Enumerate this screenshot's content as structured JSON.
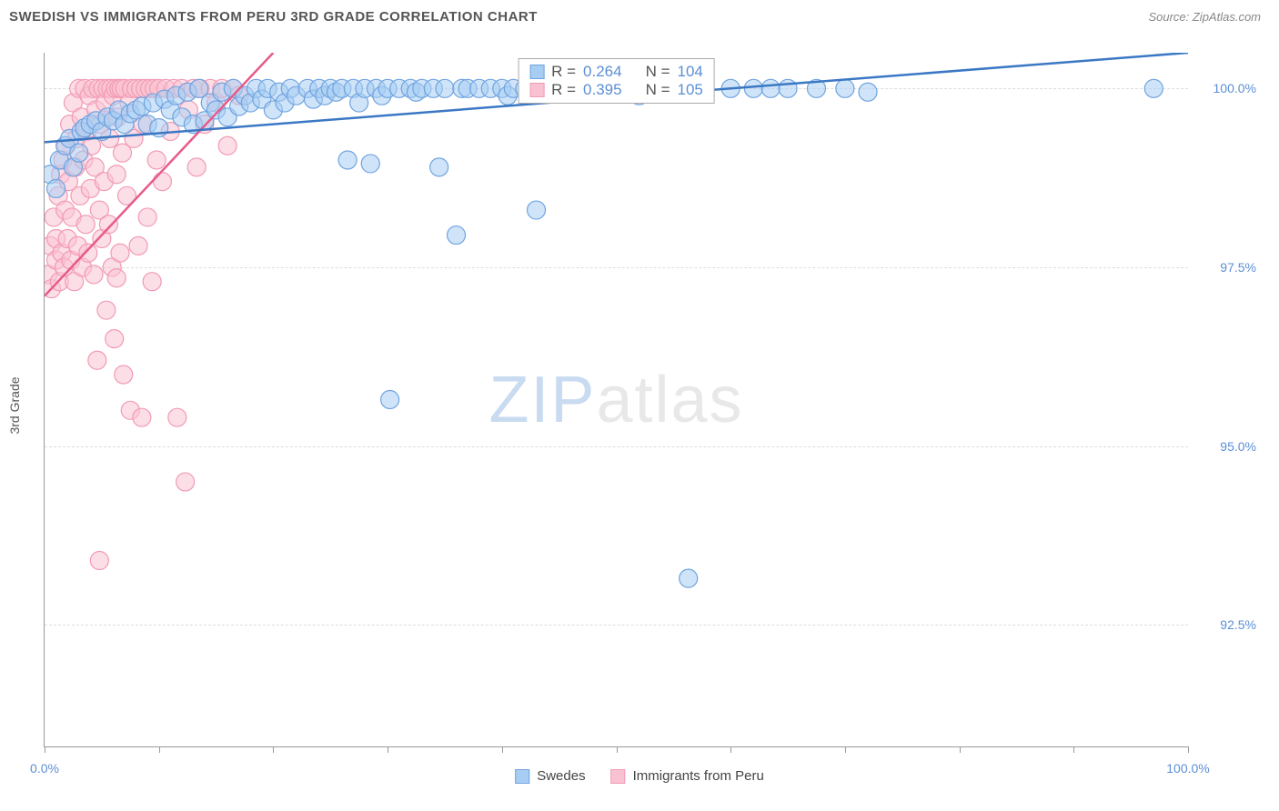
{
  "title": "SWEDISH VS IMMIGRANTS FROM PERU 3RD GRADE CORRELATION CHART",
  "source": "Source: ZipAtlas.com",
  "y_axis_label": "3rd Grade",
  "watermark_zip": "ZIP",
  "watermark_atlas": "atlas",
  "colors": {
    "blue_stroke": "#6fa3e0",
    "blue_fill": "#a8cdf2",
    "blue_fill_alpha": 0.55,
    "pink_stroke": "#f29ab5",
    "pink_fill": "#f9c2d2",
    "pink_fill_alpha": 0.55,
    "blue_line": "#3b78c4",
    "pink_line": "#e85a8a",
    "tick_text": "#5b8fd6",
    "stat_text": "#5b8fd6",
    "grid": "#dddddd"
  },
  "chart": {
    "xlim": [
      0,
      100
    ],
    "ylim": [
      90.8,
      100.5
    ],
    "ytick_values": [
      92.5,
      95.0,
      97.5,
      100.0
    ],
    "ytick_labels": [
      "92.5%",
      "95.0%",
      "97.5%",
      "100.0%"
    ],
    "xtick_values": [
      0,
      10,
      20,
      30,
      40,
      50,
      60,
      70,
      80,
      90,
      100
    ],
    "x_first_label": "0.0%",
    "x_last_label": "100.0%",
    "marker_radius": 10
  },
  "stats": {
    "blue": {
      "r_label": "R = ",
      "r": "0.264",
      "n_label": "N = ",
      "n": "104"
    },
    "pink": {
      "r_label": "R = ",
      "r": "0.395",
      "n_label": "N = ",
      "n": "105"
    }
  },
  "bottom_legend": {
    "blue": "Swedes",
    "pink": "Immigrants from Peru"
  },
  "series_blue": {
    "trend": {
      "x1": 0,
      "y1": 99.25,
      "x2": 100,
      "y2": 100.5
    },
    "points": [
      [
        0.5,
        98.8
      ],
      [
        1.0,
        98.6
      ],
      [
        1.3,
        99.0
      ],
      [
        1.8,
        99.2
      ],
      [
        2.2,
        99.3
      ],
      [
        2.5,
        98.9
      ],
      [
        3.0,
        99.1
      ],
      [
        3.2,
        99.4
      ],
      [
        3.5,
        99.45
      ],
      [
        4.0,
        99.5
      ],
      [
        4.5,
        99.55
      ],
      [
        5.0,
        99.4
      ],
      [
        5.5,
        99.6
      ],
      [
        6.0,
        99.55
      ],
      [
        6.5,
        99.7
      ],
      [
        7.0,
        99.5
      ],
      [
        7.5,
        99.65
      ],
      [
        8.0,
        99.7
      ],
      [
        8.5,
        99.75
      ],
      [
        9.0,
        99.5
      ],
      [
        9.5,
        99.8
      ],
      [
        10.0,
        99.45
      ],
      [
        10.5,
        99.85
      ],
      [
        11.0,
        99.7
      ],
      [
        11.5,
        99.9
      ],
      [
        12.0,
        99.6
      ],
      [
        12.5,
        99.95
      ],
      [
        13.0,
        99.5
      ],
      [
        13.5,
        100.0
      ],
      [
        14.0,
        99.55
      ],
      [
        14.5,
        99.8
      ],
      [
        15.0,
        99.7
      ],
      [
        15.5,
        99.95
      ],
      [
        16.0,
        99.6
      ],
      [
        16.5,
        100.0
      ],
      [
        17.0,
        99.75
      ],
      [
        17.5,
        99.9
      ],
      [
        18.0,
        99.8
      ],
      [
        18.5,
        100.0
      ],
      [
        19.0,
        99.85
      ],
      [
        19.5,
        100.0
      ],
      [
        20.0,
        99.7
      ],
      [
        20.5,
        99.95
      ],
      [
        21.0,
        99.8
      ],
      [
        21.5,
        100.0
      ],
      [
        22.0,
        99.9
      ],
      [
        23.0,
        100.0
      ],
      [
        23.5,
        99.85
      ],
      [
        24.0,
        100.0
      ],
      [
        24.5,
        99.9
      ],
      [
        25.0,
        100.0
      ],
      [
        25.5,
        99.95
      ],
      [
        26.0,
        100.0
      ],
      [
        26.5,
        99.0
      ],
      [
        27.0,
        100.0
      ],
      [
        27.5,
        99.8
      ],
      [
        28.0,
        100.0
      ],
      [
        28.5,
        98.95
      ],
      [
        29.0,
        100.0
      ],
      [
        29.5,
        99.9
      ],
      [
        30.0,
        100.0
      ],
      [
        30.2,
        95.65
      ],
      [
        31.0,
        100.0
      ],
      [
        32.0,
        100.0
      ],
      [
        32.5,
        99.95
      ],
      [
        33.0,
        100.0
      ],
      [
        34.0,
        100.0
      ],
      [
        34.5,
        98.9
      ],
      [
        35.0,
        100.0
      ],
      [
        36.0,
        97.95
      ],
      [
        36.5,
        100.0
      ],
      [
        37.0,
        100.0
      ],
      [
        38.0,
        100.0
      ],
      [
        39.0,
        100.0
      ],
      [
        40.0,
        100.0
      ],
      [
        40.5,
        99.9
      ],
      [
        41.0,
        100.0
      ],
      [
        42.0,
        100.0
      ],
      [
        43.0,
        98.3
      ],
      [
        43.5,
        100.0
      ],
      [
        45.0,
        100.0
      ],
      [
        46.0,
        100.0
      ],
      [
        47.0,
        100.0
      ],
      [
        48.0,
        99.95
      ],
      [
        49.0,
        100.0
      ],
      [
        50.0,
        100.0
      ],
      [
        51.0,
        100.0
      ],
      [
        52.0,
        99.9
      ],
      [
        53.0,
        100.0
      ],
      [
        54.0,
        100.0
      ],
      [
        55.0,
        100.0
      ],
      [
        56.3,
        93.15
      ],
      [
        57.5,
        100.0
      ],
      [
        60.0,
        100.0
      ],
      [
        62.0,
        100.0
      ],
      [
        63.5,
        100.0
      ],
      [
        65.0,
        100.0
      ],
      [
        67.5,
        100.0
      ],
      [
        70.0,
        100.0
      ],
      [
        72.0,
        99.95
      ],
      [
        97.0,
        100.0
      ]
    ]
  },
  "series_pink": {
    "trend": {
      "x1": 0,
      "y1": 97.1,
      "x2": 20,
      "y2": 100.5
    },
    "points": [
      [
        0.3,
        97.4
      ],
      [
        0.5,
        97.8
      ],
      [
        0.6,
        97.2
      ],
      [
        0.8,
        98.2
      ],
      [
        1.0,
        97.6
      ],
      [
        1.0,
        97.9
      ],
      [
        1.2,
        98.5
      ],
      [
        1.3,
        97.3
      ],
      [
        1.4,
        98.8
      ],
      [
        1.5,
        97.7
      ],
      [
        1.6,
        99.0
      ],
      [
        1.7,
        97.5
      ],
      [
        1.8,
        98.3
      ],
      [
        1.9,
        99.2
      ],
      [
        2.0,
        97.9
      ],
      [
        2.1,
        98.7
      ],
      [
        2.2,
        99.5
      ],
      [
        2.3,
        97.6
      ],
      [
        2.4,
        98.2
      ],
      [
        2.5,
        99.8
      ],
      [
        2.6,
        97.3
      ],
      [
        2.7,
        98.9
      ],
      [
        2.8,
        99.3
      ],
      [
        2.9,
        97.8
      ],
      [
        3.0,
        100.0
      ],
      [
        3.1,
        98.5
      ],
      [
        3.2,
        99.6
      ],
      [
        3.3,
        97.5
      ],
      [
        3.4,
        99.0
      ],
      [
        3.5,
        100.0
      ],
      [
        3.6,
        98.1
      ],
      [
        3.7,
        99.4
      ],
      [
        3.8,
        97.7
      ],
      [
        3.9,
        99.9
      ],
      [
        4.0,
        98.6
      ],
      [
        4.1,
        99.2
      ],
      [
        4.2,
        100.0
      ],
      [
        4.3,
        97.4
      ],
      [
        4.4,
        98.9
      ],
      [
        4.5,
        99.7
      ],
      [
        4.6,
        96.2
      ],
      [
        4.7,
        100.0
      ],
      [
        4.8,
        98.3
      ],
      [
        4.9,
        99.5
      ],
      [
        5.0,
        97.9
      ],
      [
        5.1,
        100.0
      ],
      [
        5.2,
        98.7
      ],
      [
        5.3,
        99.8
      ],
      [
        5.4,
        96.9
      ],
      [
        5.5,
        100.0
      ],
      [
        5.6,
        98.1
      ],
      [
        5.7,
        99.3
      ],
      [
        5.8,
        100.0
      ],
      [
        5.9,
        97.5
      ],
      [
        6.0,
        99.9
      ],
      [
        6.1,
        96.5
      ],
      [
        6.2,
        100.0
      ],
      [
        6.3,
        98.8
      ],
      [
        6.4,
        99.6
      ],
      [
        6.5,
        100.0
      ],
      [
        6.6,
        97.7
      ],
      [
        6.7,
        100.0
      ],
      [
        6.8,
        99.1
      ],
      [
        6.9,
        96.0
      ],
      [
        7.0,
        100.0
      ],
      [
        7.2,
        98.5
      ],
      [
        7.4,
        99.8
      ],
      [
        7.5,
        95.5
      ],
      [
        7.6,
        100.0
      ],
      [
        7.8,
        99.3
      ],
      [
        8.0,
        100.0
      ],
      [
        8.2,
        97.8
      ],
      [
        8.4,
        100.0
      ],
      [
        8.5,
        95.4
      ],
      [
        8.6,
        99.5
      ],
      [
        8.8,
        100.0
      ],
      [
        9.0,
        98.2
      ],
      [
        9.2,
        100.0
      ],
      [
        9.4,
        97.3
      ],
      [
        9.6,
        100.0
      ],
      [
        9.8,
        99.0
      ],
      [
        10.0,
        100.0
      ],
      [
        10.3,
        98.7
      ],
      [
        10.6,
        100.0
      ],
      [
        11.0,
        99.4
      ],
      [
        11.3,
        100.0
      ],
      [
        11.6,
        95.4
      ],
      [
        12.0,
        100.0
      ],
      [
        12.3,
        94.5
      ],
      [
        12.6,
        99.7
      ],
      [
        13.0,
        100.0
      ],
      [
        13.3,
        98.9
      ],
      [
        13.6,
        100.0
      ],
      [
        14.0,
        99.5
      ],
      [
        14.5,
        100.0
      ],
      [
        15.0,
        99.8
      ],
      [
        15.5,
        100.0
      ],
      [
        16.0,
        99.2
      ],
      [
        16.5,
        100.0
      ],
      [
        17.0,
        99.9
      ],
      [
        4.8,
        93.4
      ],
      [
        6.3,
        97.35
      ]
    ]
  }
}
